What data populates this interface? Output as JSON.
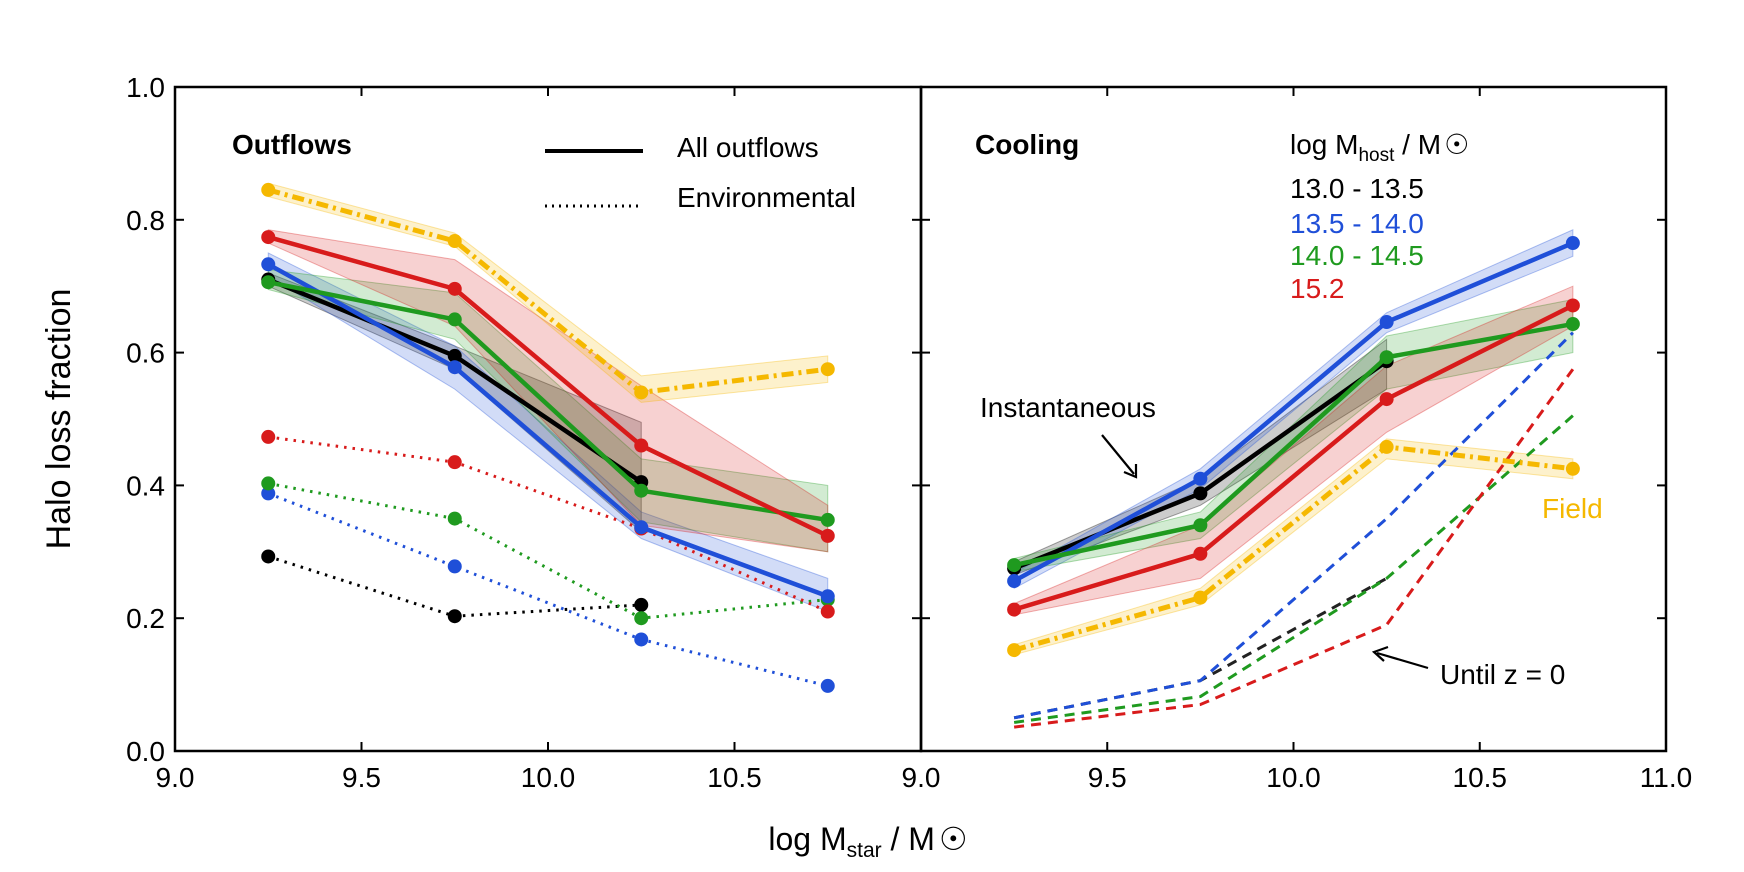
{
  "chart_data": [
    {
      "type": "line",
      "panel": "left",
      "title": "Outflows",
      "xlabel": "log M",
      "xlabel_sub": "star",
      "xlabel_tail": " / M",
      "ylabel": "Halo loss fraction",
      "xlim": [
        9.0,
        11.0
      ],
      "ylim": [
        0.0,
        1.0
      ],
      "xticks": [
        9.0,
        9.5,
        10.0,
        10.5
      ],
      "yticks": [
        0.0,
        0.2,
        0.4,
        0.6,
        0.8,
        1.0
      ],
      "x": [
        9.25,
        9.75,
        10.25,
        10.75
      ],
      "legend": [
        {
          "label": "All outflows",
          "style": "solid"
        },
        {
          "label": "Environmental",
          "style": "dotted"
        }
      ],
      "series": [
        {
          "name": "13.0 - 13.5 all",
          "color": "#000000",
          "style": "solid",
          "values": [
            0.71,
            0.595,
            0.405,
            null
          ],
          "band_lo": [
            0.7,
            0.575,
            0.33,
            null
          ],
          "band_hi": [
            0.72,
            0.61,
            0.495,
            null
          ]
        },
        {
          "name": "13.5 - 14.0 all",
          "color": "#1f4fd8",
          "style": "solid",
          "values": [
            0.733,
            0.578,
            0.337,
            0.233
          ],
          "band_lo": [
            0.715,
            0.545,
            0.32,
            0.21
          ],
          "band_hi": [
            0.75,
            0.61,
            0.36,
            0.26
          ]
        },
        {
          "name": "14.0 - 14.5 all",
          "color": "#1f9a1f",
          "style": "solid",
          "values": [
            0.706,
            0.65,
            0.392,
            0.348
          ],
          "band_lo": [
            0.695,
            0.62,
            0.345,
            0.3
          ],
          "band_hi": [
            0.725,
            0.69,
            0.44,
            0.4
          ]
        },
        {
          "name": "15.2 all",
          "color": "#d81b1b",
          "style": "solid",
          "values": [
            0.774,
            0.696,
            0.46,
            0.324
          ],
          "band_lo": [
            0.765,
            0.64,
            0.34,
            0.3
          ],
          "band_hi": [
            0.785,
            0.74,
            0.55,
            0.37
          ]
        },
        {
          "name": "Field all",
          "color": "#f5b800",
          "style": "dashdot",
          "values": [
            0.845,
            0.768,
            0.54,
            0.575
          ],
          "band_lo": [
            0.835,
            0.76,
            0.525,
            0.555
          ],
          "band_hi": [
            0.855,
            0.78,
            0.565,
            0.595
          ]
        },
        {
          "name": "13.0 - 13.5 env",
          "color": "#000000",
          "style": "dotted",
          "values": [
            0.293,
            0.203,
            0.22,
            null
          ]
        },
        {
          "name": "13.5 - 14.0 env",
          "color": "#1f4fd8",
          "style": "dotted",
          "values": [
            0.388,
            0.278,
            0.168,
            0.098
          ]
        },
        {
          "name": "14.0 - 14.5 env",
          "color": "#1f9a1f",
          "style": "dotted",
          "values": [
            0.403,
            0.35,
            0.2,
            0.228
          ]
        },
        {
          "name": "15.2 env",
          "color": "#d81b1b",
          "style": "dotted",
          "values": [
            0.473,
            0.435,
            0.335,
            0.21
          ]
        }
      ]
    },
    {
      "type": "line",
      "panel": "right",
      "title": "Cooling",
      "xlim": [
        9.0,
        11.0
      ],
      "ylim": [
        0.0,
        1.0
      ],
      "xticks": [
        9.0,
        9.5,
        10.0,
        10.5,
        11.0
      ],
      "x": [
        9.25,
        9.75,
        10.25,
        10.75
      ],
      "legend_title": "log M",
      "legend_title_sub": "host",
      "legend_title_tail": " / M",
      "legend": [
        {
          "label": "13.0 - 13.5",
          "color": "#000000"
        },
        {
          "label": "13.5 - 14.0",
          "color": "#1f4fd8"
        },
        {
          "label": "14.0 - 14.5",
          "color": "#1f9a1f"
        },
        {
          "label": "15.2",
          "color": "#d81b1b"
        }
      ],
      "annotations": [
        "Instantaneous",
        "Until z = 0",
        "Field"
      ],
      "series": [
        {
          "name": "13.0 - 13.5 inst",
          "color": "#000000",
          "style": "solid",
          "values": [
            0.275,
            0.388,
            0.587,
            null
          ],
          "band_lo": [
            0.265,
            0.37,
            0.545,
            null
          ],
          "band_hi": [
            0.285,
            0.41,
            0.62,
            null
          ]
        },
        {
          "name": "13.5 - 14.0 inst",
          "color": "#1f4fd8",
          "style": "solid",
          "values": [
            0.256,
            0.41,
            0.646,
            0.765
          ],
          "band_lo": [
            0.245,
            0.395,
            0.63,
            0.745
          ],
          "band_hi": [
            0.268,
            0.425,
            0.66,
            0.785
          ]
        },
        {
          "name": "14.0 - 14.5 inst",
          "color": "#1f9a1f",
          "style": "solid",
          "values": [
            0.28,
            0.34,
            0.593,
            0.643
          ],
          "band_lo": [
            0.27,
            0.32,
            0.545,
            0.6
          ],
          "band_hi": [
            0.29,
            0.36,
            0.625,
            0.68
          ]
        },
        {
          "name": "15.2 inst",
          "color": "#d81b1b",
          "style": "solid",
          "values": [
            0.213,
            0.297,
            0.53,
            0.671
          ],
          "band_lo": [
            0.205,
            0.26,
            0.48,
            0.64
          ],
          "band_hi": [
            0.222,
            0.34,
            0.58,
            0.7
          ]
        },
        {
          "name": "Field inst",
          "color": "#f5b800",
          "style": "dashdot",
          "values": [
            0.152,
            0.231,
            0.458,
            0.425
          ],
          "band_lo": [
            0.145,
            0.22,
            0.44,
            0.41
          ],
          "band_hi": [
            0.16,
            0.245,
            0.47,
            0.44
          ]
        },
        {
          "name": "13.0 - 13.5 z0",
          "color": "#222222",
          "style": "dashed",
          "values": [
            0.05,
            0.106,
            0.26,
            null
          ]
        },
        {
          "name": "13.5 - 14.0 z0",
          "color": "#1f4fd8",
          "style": "dashed",
          "values": [
            0.05,
            0.106,
            0.35,
            0.63
          ]
        },
        {
          "name": "14.0 - 14.5 z0",
          "color": "#1f9a1f",
          "style": "dashed",
          "values": [
            0.043,
            0.082,
            0.26,
            0.505
          ]
        },
        {
          "name": "15.2 z0",
          "color": "#d81b1b",
          "style": "dashed",
          "values": [
            0.036,
            0.07,
            0.19,
            0.575
          ]
        }
      ]
    }
  ]
}
